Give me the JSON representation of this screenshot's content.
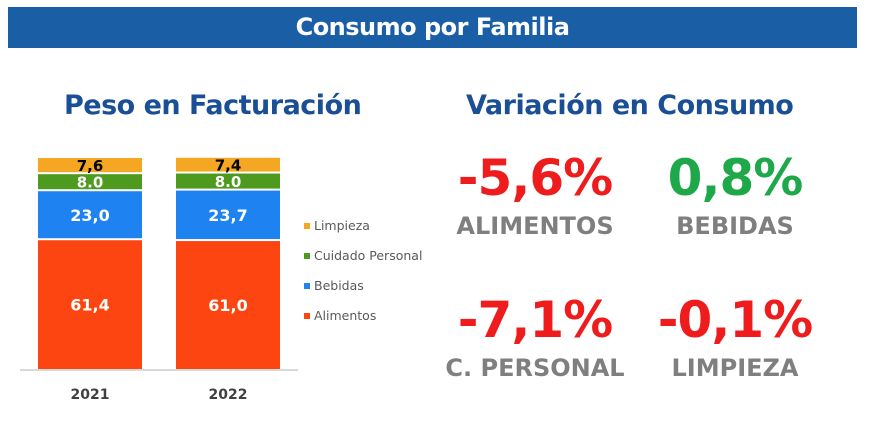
{
  "header": {
    "title": "Consumo por Familia"
  },
  "left_title": "Peso en Facturación",
  "right_title": "Variación en Consumo",
  "kpis": [
    {
      "value": "-5,6%",
      "label": "ALIMENTOS",
      "color": "#ee1c1c"
    },
    {
      "value": "0,8%",
      "label": "BEBIDAS",
      "color": "#1fa84a"
    },
    {
      "value": "-7,1%",
      "label": "C. PERSONAL",
      "color": "#ee1c1c"
    },
    {
      "value": "-0,1%",
      "label": "LIMPIEZA",
      "color": "#ee1c1c"
    }
  ],
  "chart_data": {
    "type": "bar",
    "stacked": true,
    "title": "Peso en Facturación",
    "categories": [
      "2021",
      "2022"
    ],
    "series": [
      {
        "name": "Alimentos",
        "values": [
          61.4,
          61.0
        ],
        "labels": [
          "61,4",
          "61,0"
        ],
        "color": "#fc4510",
        "label_color": "#ffffff"
      },
      {
        "name": "Bebidas",
        "values": [
          23.0,
          23.7
        ],
        "labels": [
          "23,0",
          "23,7"
        ],
        "color": "#1e82f0",
        "label_color": "#ffffff"
      },
      {
        "name": "Cuidado Personal",
        "values": [
          8.0,
          8.0
        ],
        "labels": [
          "8.0",
          "8.0"
        ],
        "color": "#4e9a1e",
        "label_color": "#ffffff"
      },
      {
        "name": "Limpieza",
        "values": [
          7.6,
          7.4
        ],
        "labels": [
          "7,6",
          "7,4"
        ],
        "color": "#f5a623",
        "label_color": "#000000"
      }
    ],
    "legend": [
      "Limpieza",
      "Cuidado Personal",
      "Bebidas",
      "Alimentos"
    ],
    "legend_position": "right",
    "ylim": [
      0,
      100
    ],
    "grid": false
  }
}
